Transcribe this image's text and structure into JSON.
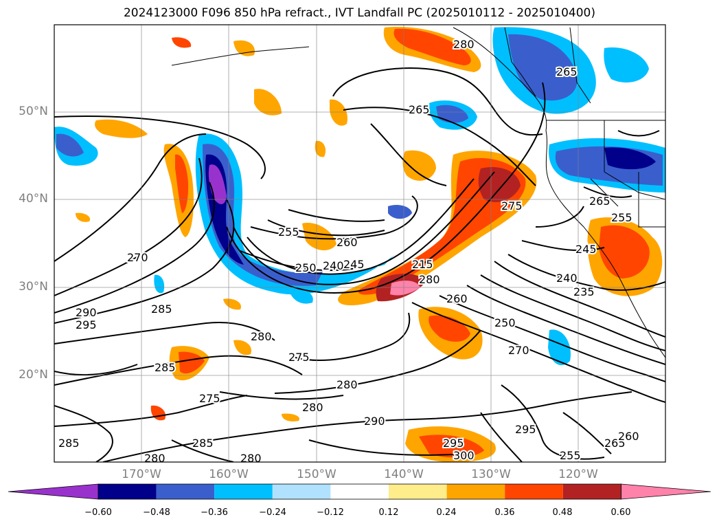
{
  "title": "2024123000 F096 850 hPa refract., IVT Landfall PC (2025010112 - 2025010400)",
  "lat_labels": [
    "50°N",
    "40°N",
    "30°N",
    "20°N"
  ],
  "lon_labels": [
    "170°W",
    "160°W",
    "150°W",
    "140°W",
    "130°W",
    "120°W"
  ],
  "colorbar": {
    "ticks": [
      "−0.60",
      "−0.48",
      "−0.36",
      "−0.24",
      "−0.12",
      "0.12",
      "0.24",
      "0.36",
      "0.48",
      "0.60"
    ],
    "colors": [
      "#9932cc",
      "#00008b",
      "#3a5fcd",
      "#00bfff",
      "#b0e2ff",
      "#ffffff",
      "#ffec8b",
      "#ffa500",
      "#ff4500",
      "#b22222",
      "#ff82ab"
    ]
  },
  "contour_labels": [
    "270",
    "290",
    "295",
    "285",
    "280",
    "285",
    "275",
    "285",
    "280",
    "280",
    "255",
    "260",
    "250",
    "240",
    "245",
    "215",
    "280",
    "260",
    "265",
    "275",
    "265",
    "255",
    "245",
    "240",
    "235",
    "250",
    "270",
    "295",
    "295",
    "300",
    "265",
    "260",
    "255",
    "280",
    "275",
    "290",
    "285",
    "280",
    "280",
    "265"
  ]
}
